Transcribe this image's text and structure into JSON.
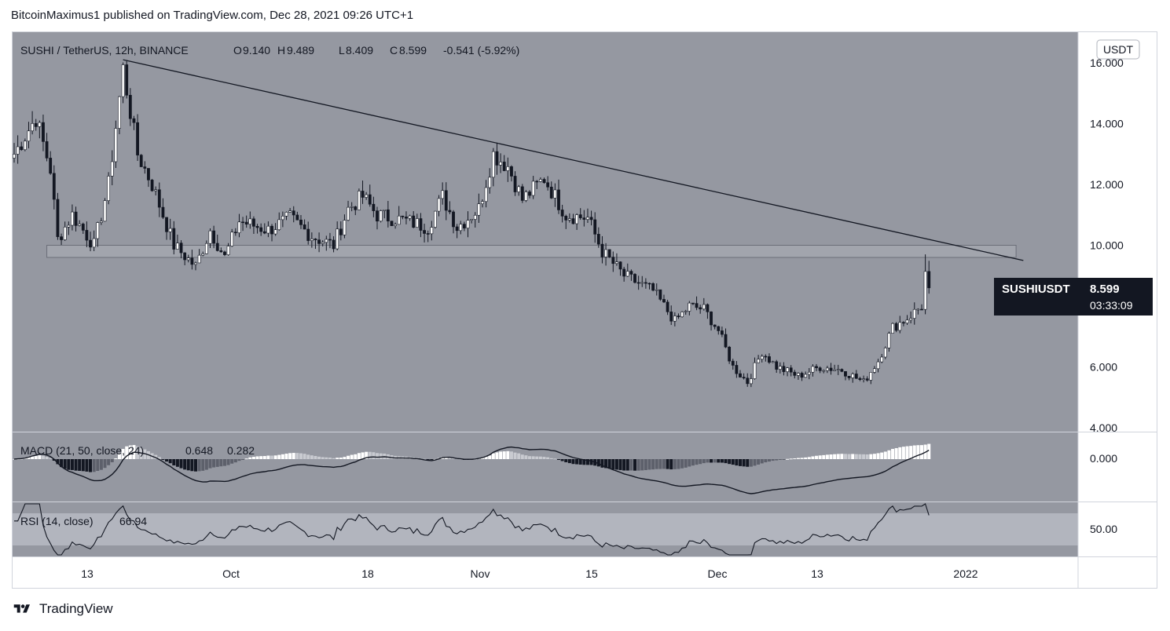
{
  "header": {
    "published_line": "BitcoinMaximus1 published on TradingView.com, Dec 28, 2021 09:26 UTC+1"
  },
  "footer": {
    "brand": "TradingView",
    "logo_icon": "tradingview-logo-icon"
  },
  "colors": {
    "pane_bg": "#9598a1",
    "rsi_band": "#b2b5be",
    "candle_up": "#ffffff",
    "candle_down": "#131722",
    "line": "#131722",
    "support_zone": "#a7aab2",
    "label_bg": "#131722"
  },
  "price_legend": {
    "symbol": "SUSHI / TetherUS, 12h, BINANCE",
    "o_label": "O",
    "o_value": "9.140",
    "h_label": "H",
    "h_value": "9.489",
    "l_label": "L",
    "l_value": "8.409",
    "c_label": "C",
    "c_value": "8.599",
    "change": "-0.541 (-5.92%)"
  },
  "currency_badge": "USDT",
  "price_label": {
    "symbol": "SUSHIUSDT",
    "value": "8.599",
    "countdown": "03:33:09"
  },
  "macd_legend": {
    "title": "MACD (21, 50, close, 24)",
    "v1": "0.648",
    "v2": "0.282"
  },
  "rsi_legend": {
    "title": "RSI (14, close)",
    "value": "66.94"
  },
  "chart_data": {
    "type": "candlestick",
    "title": "SUSHI / TetherUS, 12h, BINANCE",
    "price_axis": {
      "ticks": [
        "16.000",
        "14.000",
        "12.000",
        "10.000",
        "6.000",
        "4.000"
      ],
      "ylim": [
        4.0,
        16.5
      ]
    },
    "time_axis": {
      "ticks": [
        "13",
        "Oct",
        "18",
        "Nov",
        "15",
        "Dec",
        "13",
        "2022"
      ]
    },
    "macd_axis": {
      "ticks": [
        "0.000"
      ]
    },
    "rsi_axis": {
      "ticks": [
        "50.00"
      ],
      "band": [
        30,
        70
      ]
    },
    "price_anchors": [
      {
        "t": 0,
        "v": 13.0
      },
      {
        "t": 6,
        "v": 14.2
      },
      {
        "t": 10,
        "v": 12.5
      },
      {
        "t": 12,
        "v": 10.2
      },
      {
        "t": 16,
        "v": 11.0
      },
      {
        "t": 22,
        "v": 10.0
      },
      {
        "t": 26,
        "v": 12.0
      },
      {
        "t": 30,
        "v": 15.8
      },
      {
        "t": 34,
        "v": 13.0
      },
      {
        "t": 38,
        "v": 12.0
      },
      {
        "t": 44,
        "v": 10.0
      },
      {
        "t": 50,
        "v": 9.3
      },
      {
        "t": 54,
        "v": 10.5
      },
      {
        "t": 58,
        "v": 9.6
      },
      {
        "t": 62,
        "v": 10.8
      },
      {
        "t": 70,
        "v": 10.5
      },
      {
        "t": 76,
        "v": 10.9
      },
      {
        "t": 82,
        "v": 10.3
      },
      {
        "t": 88,
        "v": 10.0
      },
      {
        "t": 92,
        "v": 11.2
      },
      {
        "t": 96,
        "v": 11.6
      },
      {
        "t": 100,
        "v": 11.0
      },
      {
        "t": 108,
        "v": 10.8
      },
      {
        "t": 114,
        "v": 10.6
      },
      {
        "t": 118,
        "v": 11.6
      },
      {
        "t": 122,
        "v": 10.6
      },
      {
        "t": 128,
        "v": 11.2
      },
      {
        "t": 132,
        "v": 13.0
      },
      {
        "t": 136,
        "v": 12.6
      },
      {
        "t": 140,
        "v": 11.5
      },
      {
        "t": 146,
        "v": 12.2
      },
      {
        "t": 152,
        "v": 11.0
      },
      {
        "t": 158,
        "v": 10.9
      },
      {
        "t": 162,
        "v": 9.8
      },
      {
        "t": 168,
        "v": 9.0
      },
      {
        "t": 176,
        "v": 8.5
      },
      {
        "t": 182,
        "v": 7.5
      },
      {
        "t": 186,
        "v": 8.0
      },
      {
        "t": 190,
        "v": 7.9
      },
      {
        "t": 194,
        "v": 7.2
      },
      {
        "t": 198,
        "v": 6.0
      },
      {
        "t": 202,
        "v": 5.5
      },
      {
        "t": 206,
        "v": 6.5
      },
      {
        "t": 210,
        "v": 6.0
      },
      {
        "t": 216,
        "v": 5.7
      },
      {
        "t": 222,
        "v": 6.0
      },
      {
        "t": 228,
        "v": 5.9
      },
      {
        "t": 234,
        "v": 5.5
      },
      {
        "t": 238,
        "v": 6.2
      },
      {
        "t": 242,
        "v": 7.3
      },
      {
        "t": 246,
        "v": 7.6
      },
      {
        "t": 250,
        "v": 8.0
      },
      {
        "t": 252,
        "v": 8.6
      }
    ],
    "annotations": {
      "descending_trendline": {
        "from": {
          "t": 30,
          "v": 16.1
        },
        "to": {
          "t": 278,
          "v": 9.5
        }
      },
      "support_zone": {
        "low": 9.6,
        "high": 10.0,
        "t_start": 9,
        "t_end": 276
      }
    },
    "rsi_last": 66.94,
    "macd_last": {
      "macd": 0.648,
      "signal": 0.282
    }
  }
}
